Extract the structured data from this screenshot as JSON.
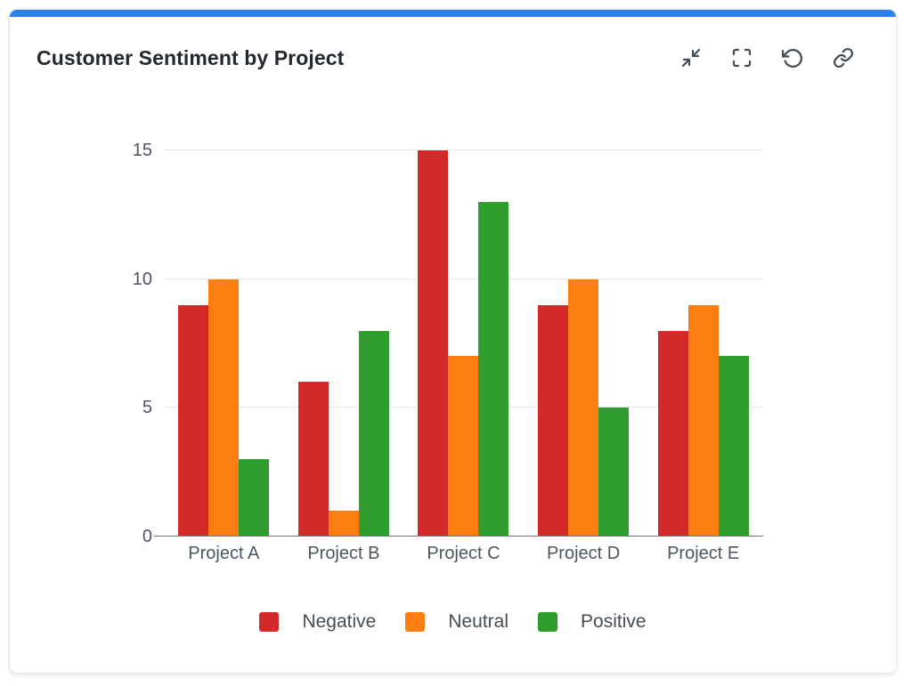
{
  "card": {
    "accent_color": "#2e7ef5"
  },
  "header": {
    "title": "Customer Sentiment by Project",
    "actions": [
      "collapse-icon",
      "fullscreen-icon",
      "reset-icon",
      "link-icon"
    ]
  },
  "colors": {
    "accent": "#2e7ef5",
    "negative": "#d3292b",
    "neutral": "#fc7e11",
    "positive": "#2f9e2e",
    "axis_line": "#6e737b",
    "grid_line": "#e7e9ed",
    "label_text": "#4d5562"
  },
  "chart_data": {
    "type": "bar",
    "title": "Customer Sentiment by Project",
    "categories": [
      "Project A",
      "Project B",
      "Project C",
      "Project D",
      "Project E"
    ],
    "series": [
      {
        "name": "Negative",
        "color": "#d3292b",
        "values": [
          9,
          6,
          15,
          9,
          8
        ]
      },
      {
        "name": "Neutral",
        "color": "#fc7e11",
        "values": [
          10,
          1,
          7,
          10,
          9
        ]
      },
      {
        "name": "Positive",
        "color": "#2f9e2e",
        "values": [
          3,
          8,
          13,
          5,
          7
        ]
      }
    ],
    "xlabel": "",
    "ylabel": "",
    "ylim": [
      0,
      15
    ],
    "yticks": [
      0,
      5,
      10,
      15
    ],
    "grid": true,
    "legend_position": "bottom"
  }
}
